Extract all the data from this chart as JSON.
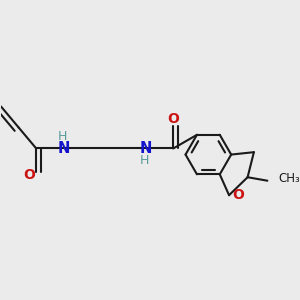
{
  "background_color": "#ebebeb",
  "bond_color": "#1a1a1a",
  "N_color": "#1414cc",
  "O_color": "#cc1414",
  "H_color": "#5a9a9a",
  "bond_width": 1.5,
  "figsize": [
    3.0,
    3.0
  ],
  "dpi": 100,
  "xlim": [
    -0.5,
    8.5
  ],
  "ylim": [
    -0.5,
    8.5
  ]
}
